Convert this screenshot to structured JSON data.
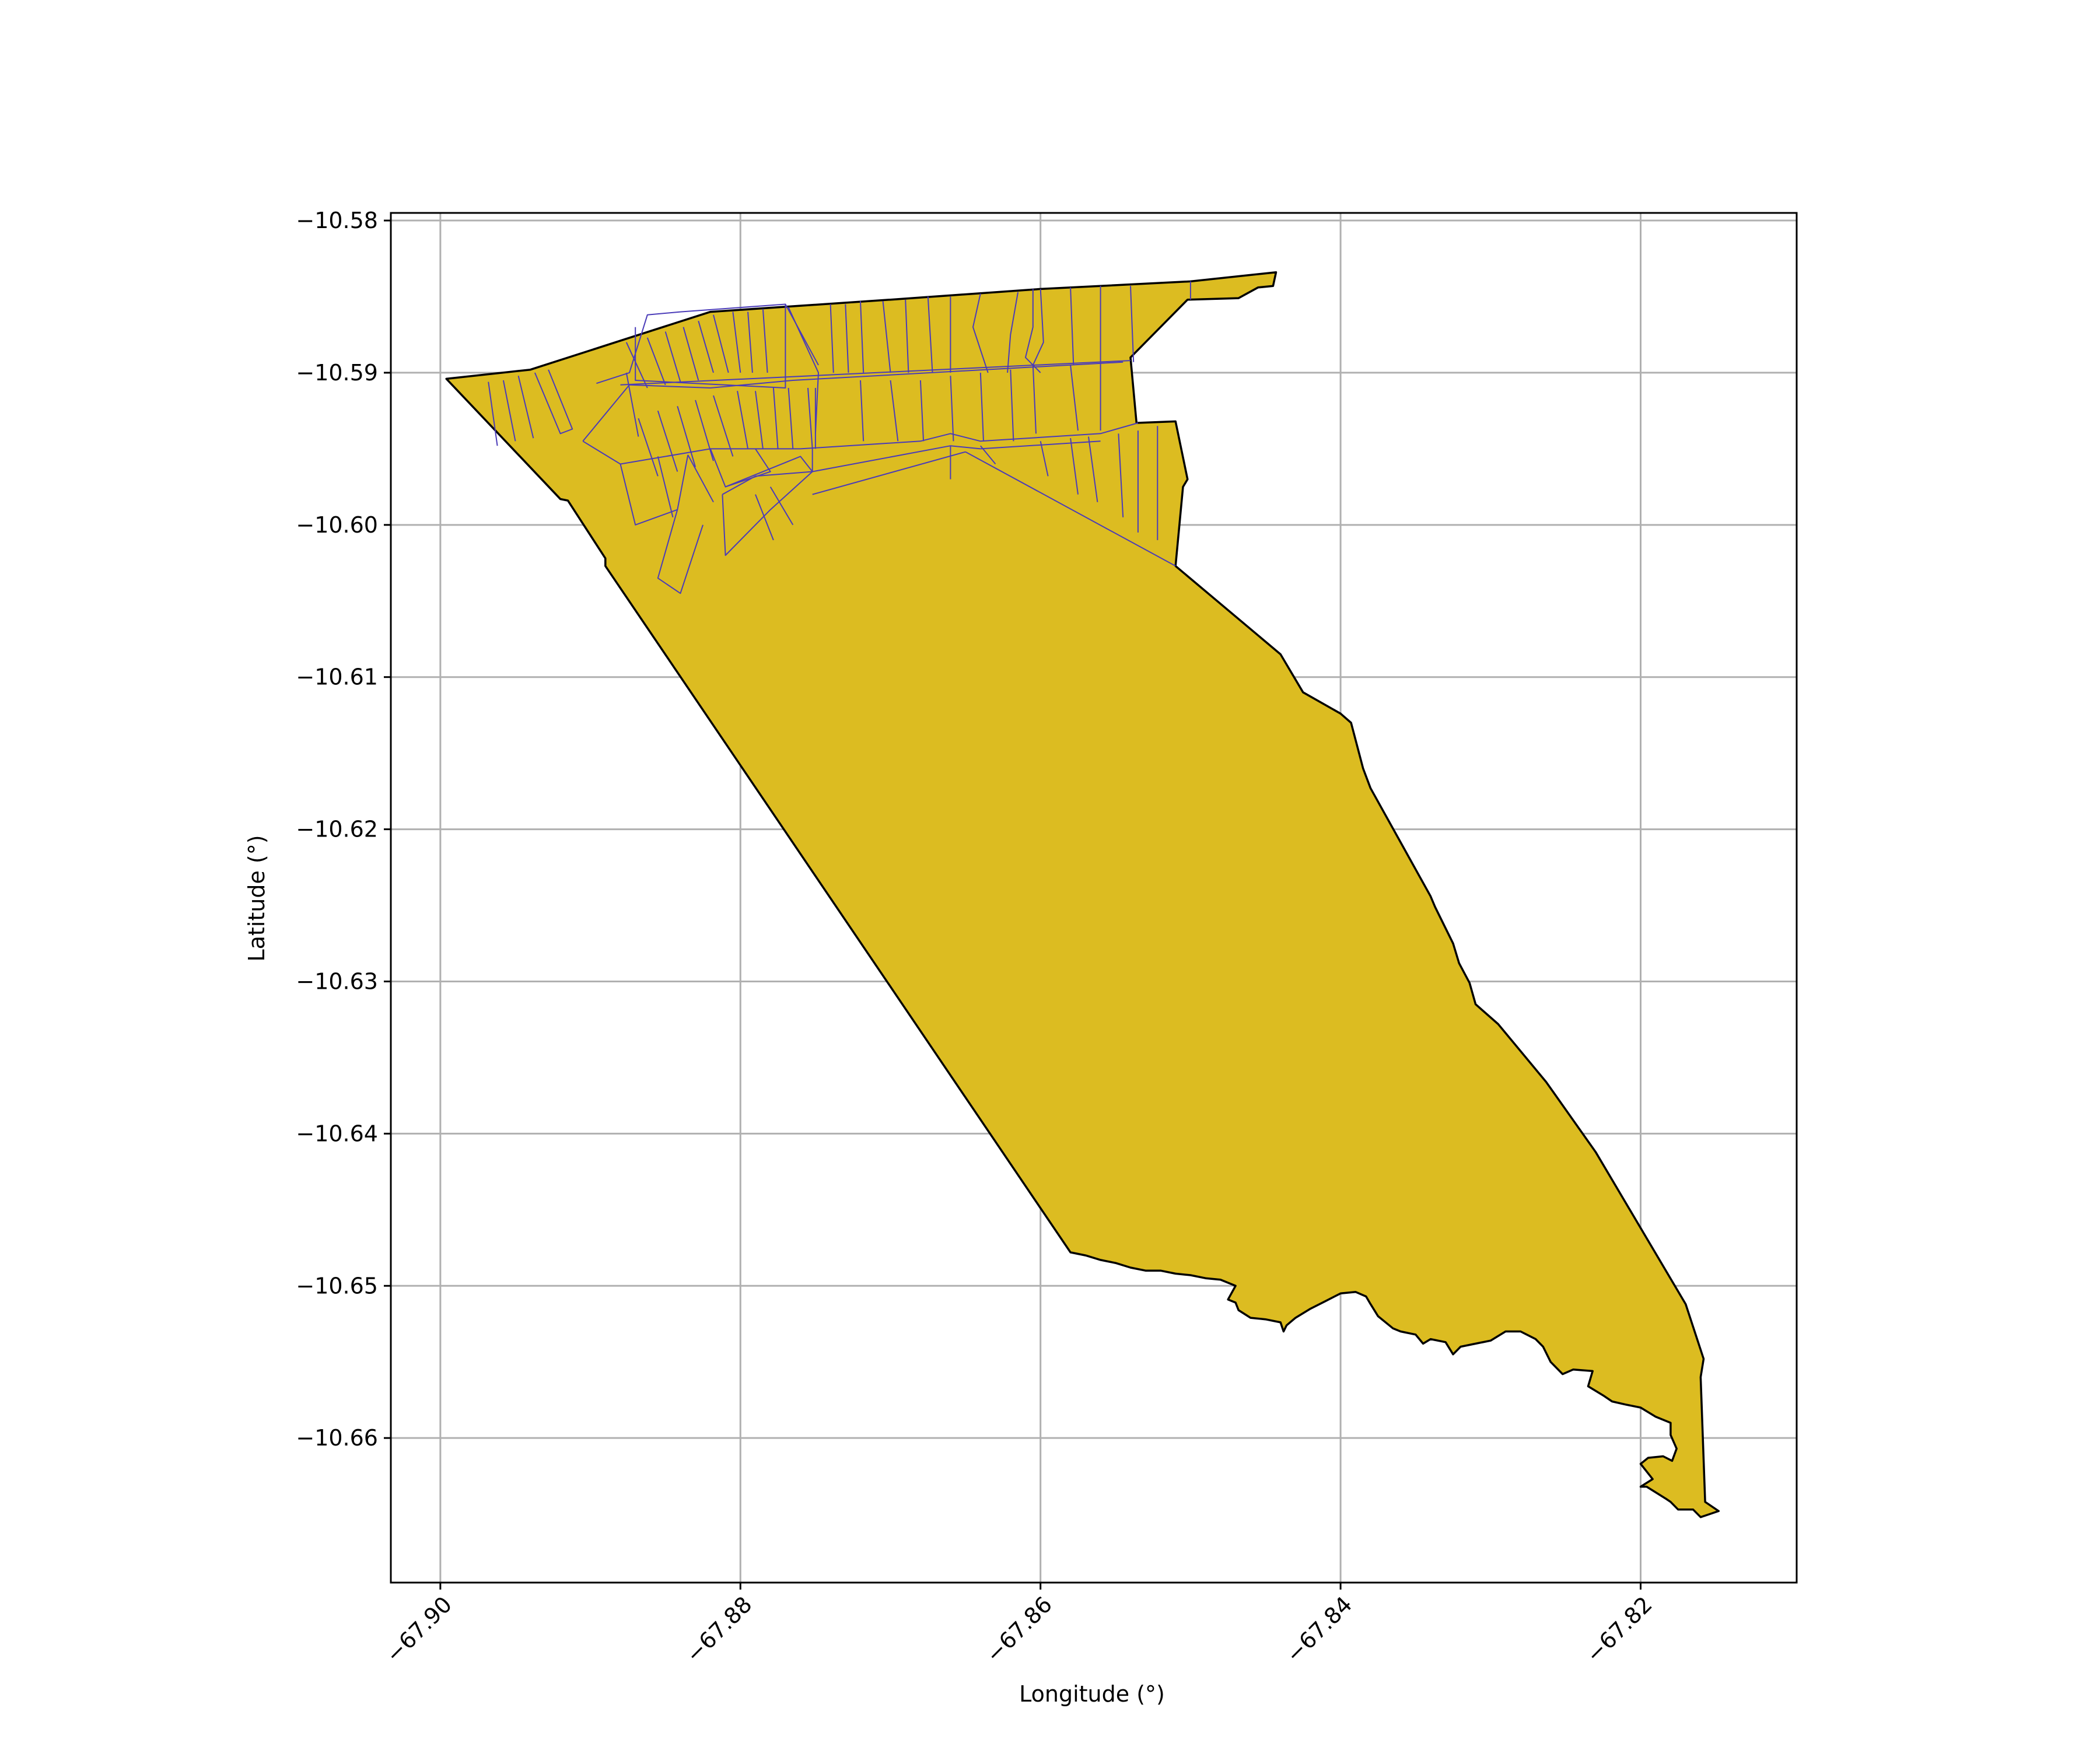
{
  "chart_data": {
    "type": "map",
    "title": "",
    "xlabel": "Longitude (°)",
    "ylabel": "Latitude (°)",
    "xlim": [
      -67.9033,
      -67.8096
    ],
    "ylim": [
      -10.6695,
      -10.5795
    ],
    "x_ticks": [
      -67.9,
      -67.88,
      -67.86,
      -67.84,
      -67.82
    ],
    "x_tick_labels": [
      "−67.90",
      "−67.88",
      "−67.86",
      "−67.84",
      "−67.82"
    ],
    "y_ticks": [
      -10.58,
      -10.59,
      -10.6,
      -10.61,
      -10.62,
      -10.63,
      -10.64,
      -10.65,
      -10.66
    ],
    "y_tick_labels": [
      "−10.58",
      "−10.59",
      "−10.60",
      "−10.61",
      "−10.62",
      "−10.63",
      "−10.64",
      "−10.65",
      "−10.66"
    ],
    "grid": true,
    "colors": {
      "fill": "#dcbc21",
      "boundary": "#000000",
      "parcel_lines": "#4a3bb8",
      "grid": "#b0b0b0"
    },
    "outline": [
      [
        -67.8996,
        -10.5904
      ],
      [
        -67.894,
        -10.5898
      ],
      [
        -67.888,
        -10.5879
      ],
      [
        -67.882,
        -10.586
      ],
      [
        -67.87,
        -10.5852
      ],
      [
        -67.86,
        -10.5845
      ],
      [
        -67.85,
        -10.584
      ],
      [
        -67.8443,
        -10.5834
      ],
      [
        -67.8445,
        -10.5843
      ],
      [
        -67.8455,
        -10.5844
      ],
      [
        -67.8468,
        -10.5851
      ],
      [
        -67.8502,
        -10.5852
      ],
      [
        -67.854,
        -10.589
      ],
      [
        -67.8536,
        -10.5933
      ],
      [
        -67.851,
        -10.5932
      ],
      [
        -67.8502,
        -10.597
      ],
      [
        -67.8505,
        -10.5975
      ],
      [
        -67.851,
        -10.6027
      ],
      [
        -67.844,
        -10.6085
      ],
      [
        -67.8428,
        -10.6105
      ],
      [
        -67.8425,
        -10.611
      ],
      [
        -67.84,
        -10.6124
      ],
      [
        -67.8393,
        -10.613
      ],
      [
        -67.8385,
        -10.616
      ],
      [
        -67.838,
        -10.6173
      ],
      [
        -67.834,
        -10.6244
      ],
      [
        -67.8337,
        -10.6251
      ],
      [
        -67.833,
        -10.6265
      ],
      [
        -67.8325,
        -10.6275
      ],
      [
        -67.8321,
        -10.6288
      ],
      [
        -67.8314,
        -10.6301
      ],
      [
        -67.831,
        -10.6315
      ],
      [
        -67.8295,
        -10.6328
      ],
      [
        -67.8263,
        -10.6366
      ],
      [
        -67.823,
        -10.6412
      ],
      [
        -67.82,
        -10.6462
      ],
      [
        -67.817,
        -10.6512
      ],
      [
        -67.8158,
        -10.6548
      ],
      [
        -67.816,
        -10.656
      ],
      [
        -67.8157,
        -10.6642
      ],
      [
        -67.8148,
        -10.6648
      ],
      [
        -67.816,
        -10.6652
      ],
      [
        -67.8165,
        -10.6647
      ],
      [
        -67.8175,
        -10.6647
      ],
      [
        -67.818,
        -10.6642
      ],
      [
        -67.8183,
        -10.664
      ],
      [
        -67.8196,
        -10.6632
      ],
      [
        -67.82,
        -10.6632
      ],
      [
        -67.8192,
        -10.6627
      ],
      [
        -67.82,
        -10.6617
      ],
      [
        -67.8195,
        -10.6613
      ],
      [
        -67.8185,
        -10.6612
      ],
      [
        -67.8179,
        -10.6615
      ],
      [
        -67.8176,
        -10.6607
      ],
      [
        -67.818,
        -10.6598
      ],
      [
        -67.818,
        -10.659
      ],
      [
        -67.819,
        -10.6586
      ],
      [
        -67.82,
        -10.658
      ],
      [
        -67.821,
        -10.6578
      ],
      [
        -67.8219,
        -10.6576
      ],
      [
        -67.8225,
        -10.6572
      ],
      [
        -67.8235,
        -10.6566
      ],
      [
        -67.8232,
        -10.6556
      ],
      [
        -67.8245,
        -10.6555
      ],
      [
        -67.8252,
        -10.6558
      ],
      [
        -67.826,
        -10.655
      ],
      [
        -67.8265,
        -10.654
      ],
      [
        -67.827,
        -10.6535
      ],
      [
        -67.828,
        -10.653
      ],
      [
        -67.829,
        -10.653
      ],
      [
        -67.83,
        -10.6536
      ],
      [
        -67.831,
        -10.6538
      ],
      [
        -67.832,
        -10.654
      ],
      [
        -67.8325,
        -10.6545
      ],
      [
        -67.833,
        -10.6537
      ],
      [
        -67.834,
        -10.6535
      ],
      [
        -67.8345,
        -10.6538
      ],
      [
        -67.835,
        -10.6532
      ],
      [
        -67.836,
        -10.653
      ],
      [
        -67.8365,
        -10.6528
      ],
      [
        -67.8375,
        -10.652
      ],
      [
        -67.838,
        -10.6512
      ],
      [
        -67.8383,
        -10.6507
      ],
      [
        -67.839,
        -10.6504
      ],
      [
        -67.84,
        -10.6505
      ],
      [
        -67.841,
        -10.651
      ],
      [
        -67.842,
        -10.6515
      ],
      [
        -67.843,
        -10.6521
      ],
      [
        -67.8436,
        -10.6526
      ],
      [
        -67.8438,
        -10.653
      ],
      [
        -67.844,
        -10.6524
      ],
      [
        -67.845,
        -10.6522
      ],
      [
        -67.846,
        -10.6521
      ],
      [
        -67.8468,
        -10.6516
      ],
      [
        -67.847,
        -10.6511
      ],
      [
        -67.8475,
        -10.6509
      ],
      [
        -67.847,
        -10.65
      ],
      [
        -67.848,
        -10.6496
      ],
      [
        -67.849,
        -10.6495
      ],
      [
        -67.85,
        -10.6493
      ],
      [
        -67.851,
        -10.6492
      ],
      [
        -67.852,
        -10.649
      ],
      [
        -67.853,
        -10.649
      ],
      [
        -67.854,
        -10.6488
      ],
      [
        -67.855,
        -10.6485
      ],
      [
        -67.856,
        -10.6483
      ],
      [
        -67.857,
        -10.648
      ],
      [
        -67.858,
        -10.6478
      ],
      [
        -67.889,
        -10.6027
      ],
      [
        -67.889,
        -10.6022
      ],
      [
        -67.8915,
        -10.5984
      ],
      [
        -67.892,
        -10.5983
      ],
      [
        -67.8996,
        -10.5904
      ]
    ],
    "parcels": [
      [
        [
          -67.8937,
          -10.59
        ],
        [
          -67.892,
          -10.594
        ],
        [
          -67.8912,
          -10.5937
        ],
        [
          -67.8928,
          -10.5898
        ]
      ],
      [
        [
          -67.8948,
          -10.5902
        ],
        [
          -67.8938,
          -10.5943
        ]
      ],
      [
        [
          -67.8958,
          -10.5905
        ],
        [
          -67.895,
          -10.5945
        ]
      ],
      [
        [
          -67.8968,
          -10.5906
        ],
        [
          -67.8962,
          -10.5948
        ]
      ],
      [
        [
          -67.8896,
          -10.5907
        ],
        [
          -67.8874,
          -10.59
        ],
        [
          -67.8862,
          -10.5862
        ],
        [
          -67.884,
          -10.586
        ],
        [
          -67.877,
          -10.5855
        ],
        [
          -67.877,
          -10.591
        ],
        [
          -67.887,
          -10.5905
        ],
        [
          -67.887,
          -10.587
        ]
      ],
      [
        [
          -67.8876,
          -10.588
        ],
        [
          -67.8862,
          -10.591
        ]
      ],
      [
        [
          -67.8862,
          -10.5877
        ],
        [
          -67.885,
          -10.5908
        ]
      ],
      [
        [
          -67.885,
          -10.5873
        ],
        [
          -67.884,
          -10.5906
        ]
      ],
      [
        [
          -67.8838,
          -10.587
        ],
        [
          -67.8828,
          -10.5905
        ]
      ],
      [
        [
          -67.8828,
          -10.5866
        ],
        [
          -67.8818,
          -10.59
        ]
      ],
      [
        [
          -67.8818,
          -10.5862
        ],
        [
          -67.8808,
          -10.59
        ]
      ],
      [
        [
          -67.8805,
          -10.586
        ],
        [
          -67.88,
          -10.59
        ]
      ],
      [
        [
          -67.8795,
          -10.586
        ],
        [
          -67.8792,
          -10.59
        ]
      ],
      [
        [
          -67.8785,
          -10.5858
        ],
        [
          -67.8782,
          -10.59
        ]
      ],
      [
        [
          -67.8768,
          -10.5857
        ],
        [
          -67.8748,
          -10.59
        ],
        [
          -67.875,
          -10.594
        ]
      ],
      [
        [
          -67.877,
          -10.5855
        ],
        [
          -67.8748,
          -10.5895
        ]
      ],
      [
        [
          -67.874,
          -10.5855
        ],
        [
          -67.8738,
          -10.59
        ]
      ],
      [
        [
          -67.873,
          -10.5855
        ],
        [
          -67.8728,
          -10.59
        ]
      ],
      [
        [
          -67.872,
          -10.5853
        ],
        [
          -67.8718,
          -10.59
        ]
      ],
      [
        [
          -67.8705,
          -10.5853
        ],
        [
          -67.87,
          -10.59
        ]
      ],
      [
        [
          -67.869,
          -10.5852
        ],
        [
          -67.8688,
          -10.59
        ]
      ],
      [
        [
          -67.8675,
          -10.585
        ],
        [
          -67.8672,
          -10.59
        ]
      ],
      [
        [
          -67.866,
          -10.585
        ],
        [
          -67.866,
          -10.59
        ]
      ],
      [
        [
          -67.864,
          -10.5848
        ],
        [
          -67.8645,
          -10.587
        ],
        [
          -67.8635,
          -10.59
        ]
      ],
      [
        [
          -67.8615,
          -10.5847
        ],
        [
          -67.862,
          -10.5875
        ],
        [
          -67.8622,
          -10.59
        ]
      ],
      [
        [
          -67.8605,
          -10.5845
        ],
        [
          -67.8605,
          -10.587
        ],
        [
          -67.861,
          -10.589
        ],
        [
          -67.86,
          -10.59
        ]
      ],
      [
        [
          -67.86,
          -10.5845
        ],
        [
          -67.8598,
          -10.588
        ],
        [
          -67.8605,
          -10.5895
        ]
      ],
      [
        [
          -67.858,
          -10.5844
        ],
        [
          -67.8578,
          -10.5895
        ]
      ],
      [
        [
          -67.856,
          -10.5843
        ],
        [
          -67.856,
          -10.5895
        ]
      ],
      [
        [
          -67.854,
          -10.5843
        ],
        [
          -67.8538,
          -10.5893
        ]
      ],
      [
        [
          -67.85,
          -10.584
        ],
        [
          -67.85,
          -10.5852
        ]
      ],
      [
        [
          -67.888,
          -10.5908
        ],
        [
          -67.854,
          -10.5892
        ]
      ],
      [
        [
          -67.8876,
          -10.59
        ],
        [
          -67.8868,
          -10.5942
        ]
      ],
      [
        [
          -67.8905,
          -10.5945
        ],
        [
          -67.8874,
          -10.5908
        ],
        [
          -67.882,
          -10.591
        ],
        [
          -67.8765,
          -10.5905
        ],
        [
          -67.8545,
          -10.5893
        ]
      ],
      [
        [
          -67.8868,
          -10.593
        ],
        [
          -67.8855,
          -10.5968
        ]
      ],
      [
        [
          -67.8855,
          -10.5925
        ],
        [
          -67.8842,
          -10.5965
        ]
      ],
      [
        [
          -67.8842,
          -10.5922
        ],
        [
          -67.883,
          -10.5962
        ]
      ],
      [
        [
          -67.883,
          -10.5918
        ],
        [
          -67.8818,
          -10.5958
        ]
      ],
      [
        [
          -67.8818,
          -10.5915
        ],
        [
          -67.8805,
          -10.5955
        ]
      ],
      [
        [
          -67.8802,
          -10.5912
        ],
        [
          -67.8795,
          -10.595
        ]
      ],
      [
        [
          -67.879,
          -10.5912
        ],
        [
          -67.8785,
          -10.595
        ]
      ],
      [
        [
          -67.8778,
          -10.591
        ],
        [
          -67.8775,
          -10.595
        ]
      ],
      [
        [
          -67.8768,
          -10.591
        ],
        [
          -67.8765,
          -10.595
        ]
      ],
      [
        [
          -67.8755,
          -10.591
        ],
        [
          -67.8752,
          -10.595
        ]
      ],
      [
        [
          -67.875,
          -10.591
        ],
        [
          -67.875,
          -10.595
        ]
      ],
      [
        [
          -67.872,
          -10.5905
        ],
        [
          -67.8718,
          -10.5945
        ]
      ],
      [
        [
          -67.87,
          -10.5905
        ],
        [
          -67.8695,
          -10.5945
        ]
      ],
      [
        [
          -67.868,
          -10.5905
        ],
        [
          -67.8678,
          -10.5945
        ]
      ],
      [
        [
          -67.866,
          -10.5902
        ],
        [
          -67.8658,
          -10.5945
        ]
      ],
      [
        [
          -67.864,
          -10.59
        ],
        [
          -67.8638,
          -10.5945
        ]
      ],
      [
        [
          -67.862,
          -10.5898
        ],
        [
          -67.8618,
          -10.5945
        ]
      ],
      [
        [
          -67.8605,
          -10.5895
        ],
        [
          -67.8603,
          -10.594
        ]
      ],
      [
        [
          -67.858,
          -10.5895
        ],
        [
          -67.8575,
          -10.5938
        ]
      ],
      [
        [
          -67.856,
          -10.5895
        ],
        [
          -67.856,
          -10.5938
        ]
      ],
      [
        [
          -67.8905,
          -10.5945
        ],
        [
          -67.888,
          -10.596
        ],
        [
          -67.882,
          -10.595
        ],
        [
          -67.876,
          -10.595
        ],
        [
          -67.868,
          -10.5945
        ],
        [
          -67.866,
          -10.594
        ],
        [
          -67.864,
          -10.5945
        ],
        [
          -67.856,
          -10.594
        ],
        [
          -67.8535,
          -10.5933
        ]
      ],
      [
        [
          -67.888,
          -10.596
        ],
        [
          -67.887,
          -10.6
        ],
        [
          -67.8842,
          -10.599
        ],
        [
          -67.8835,
          -10.5954
        ]
      ],
      [
        [
          -67.8855,
          -10.5955
        ],
        [
          -67.8845,
          -10.5995
        ]
      ],
      [
        [
          -67.8835,
          -10.5954
        ],
        [
          -67.8818,
          -10.5985
        ]
      ],
      [
        [
          -67.882,
          -10.595
        ],
        [
          -67.881,
          -10.5975
        ],
        [
          -67.878,
          -10.5965
        ],
        [
          -67.879,
          -10.595
        ]
      ],
      [
        [
          -67.8752,
          -10.595
        ],
        [
          -67.8752,
          -10.5965
        ],
        [
          -67.876,
          -10.5955
        ],
        [
          -67.881,
          -10.5975
        ]
      ],
      [
        [
          -67.8842,
          -10.599
        ],
        [
          -67.8855,
          -10.6035
        ],
        [
          -67.884,
          -10.6045
        ],
        [
          -67.8825,
          -10.6
        ]
      ],
      [
        [
          -67.8812,
          -10.598
        ],
        [
          -67.879,
          -10.5968
        ],
        [
          -67.8752,
          -10.5965
        ],
        [
          -67.878,
          -10.599
        ],
        [
          -67.881,
          -10.602
        ],
        [
          -67.8812,
          -10.598
        ]
      ],
      [
        [
          -67.879,
          -10.598
        ],
        [
          -67.8778,
          -10.601
        ]
      ],
      [
        [
          -67.878,
          -10.5975
        ],
        [
          -67.8765,
          -10.6
        ]
      ],
      [
        [
          -67.8752,
          -10.5965
        ],
        [
          -67.866,
          -10.5948
        ],
        [
          -67.864,
          -10.595
        ],
        [
          -67.856,
          -10.5945
        ]
      ],
      [
        [
          -67.866,
          -10.5948
        ],
        [
          -67.866,
          -10.597
        ]
      ],
      [
        [
          -67.865,
          -10.5952
        ],
        [
          -67.851,
          -10.6027
        ]
      ],
      [
        [
          -67.865,
          -10.5952
        ],
        [
          -67.8752,
          -10.598
        ]
      ],
      [
        [
          -67.864,
          -10.5948
        ],
        [
          -67.863,
          -10.596
        ]
      ],
      [
        [
          -67.86,
          -10.5945
        ],
        [
          -67.8595,
          -10.5968
        ]
      ],
      [
        [
          -67.858,
          -10.5943
        ],
        [
          -67.8575,
          -10.598
        ]
      ],
      [
        [
          -67.8568,
          -10.5942
        ],
        [
          -67.8562,
          -10.5985
        ]
      ],
      [
        [
          -67.8548,
          -10.594
        ],
        [
          -67.8545,
          -10.5995
        ]
      ],
      [
        [
          -67.8535,
          -10.5938
        ],
        [
          -67.8535,
          -10.6005
        ]
      ],
      [
        [
          -67.8522,
          -10.5935
        ],
        [
          -67.8522,
          -10.601
        ]
      ]
    ]
  }
}
